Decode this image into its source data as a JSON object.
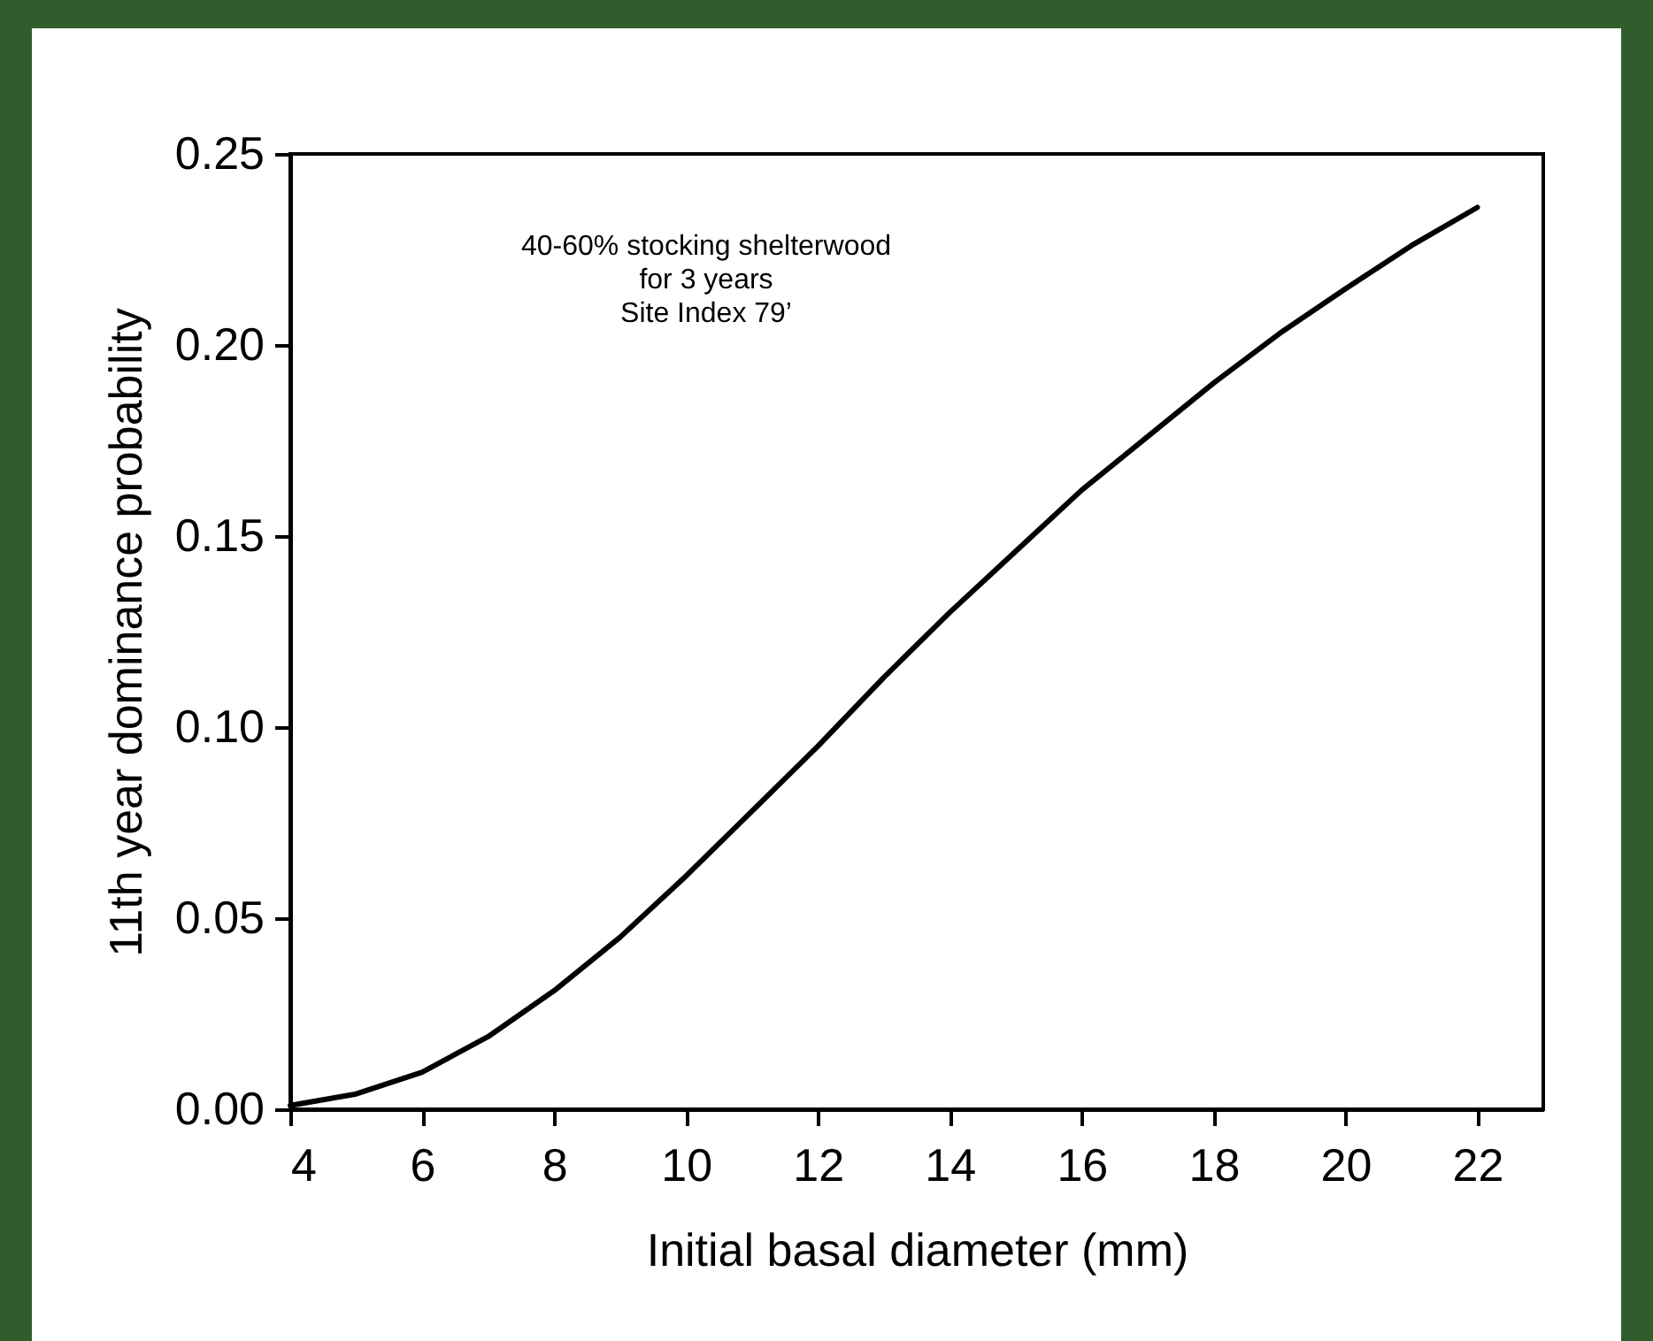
{
  "chart_data": {
    "type": "line",
    "xlabel": "Initial basal diameter (mm)",
    "ylabel": "11th year dominance probability",
    "annotations": [
      "40-60% stocking shelterwood\nfor 3 years\nSite Index 79’"
    ],
    "x": [
      4,
      5,
      6,
      7,
      8,
      9,
      10,
      11,
      12,
      13,
      14,
      15,
      16,
      17,
      18,
      19,
      20,
      21,
      22
    ],
    "series": [
      {
        "color": "#000000",
        "values": [
          0.001,
          0.004,
          0.0097,
          0.019,
          0.031,
          0.045,
          0.061,
          0.078,
          0.095,
          0.113,
          0.13,
          0.146,
          0.162,
          0.176,
          0.19,
          0.203,
          0.2147,
          0.226,
          0.236
        ]
      }
    ],
    "xlim": [
      4,
      23
    ],
    "xticks": [
      4,
      6,
      8,
      10,
      12,
      14,
      16,
      18,
      20,
      22
    ],
    "ylim": [
      0,
      0.25
    ],
    "yticks": [
      {
        "value": 0,
        "label": "0.00"
      },
      {
        "value": 0.05,
        "label": "0.05"
      },
      {
        "value": 0.1,
        "label": "0.10"
      },
      {
        "value": 0.15,
        "label": "0.15"
      },
      {
        "value": 0.2,
        "label": "0.20"
      },
      {
        "value": 0.25,
        "label": "0.25"
      }
    ],
    "grid": false,
    "legend": false,
    "marker": "none",
    "line_style": "solid"
  }
}
